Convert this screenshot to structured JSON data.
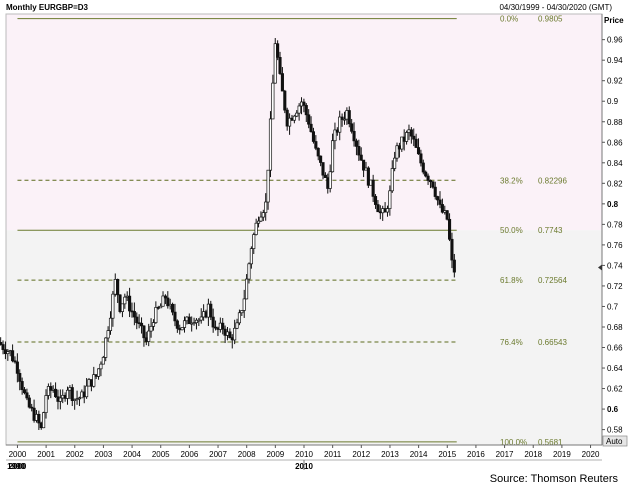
{
  "header": {
    "title": "Monthly EURGBP=D3",
    "date_range": "04/30/1999 - 04/30/2020 (GMT)"
  },
  "source": "Source: Thomson Reuters",
  "colors": {
    "upper_band": "#fbf2f8",
    "lower_band": "#f3f3f3",
    "fib_solid": "#6b7a2e",
    "fib_dashed": "#5d6b1e",
    "fib_label": "#6b7a2e",
    "candles": "#111111"
  },
  "chart_data": {
    "type": "candlestick",
    "title": "Monthly EURGBP=D3",
    "price_axis_label": "Price",
    "auto_label": "Auto",
    "ylim": [
      0.565,
      0.985
    ],
    "xlim": [
      1999.6,
      2020.4
    ],
    "grid": false,
    "y_ticks": [
      "0.58",
      "0.6",
      "0.62",
      "0.64",
      "0.66",
      "0.68",
      "0.7",
      "0.72",
      "0.74",
      "0.76",
      "0.78",
      "0.8",
      "0.82",
      "0.84",
      "0.86",
      "0.88",
      "0.9",
      "0.92",
      "0.94",
      "0.96"
    ],
    "bold_y_ticks": [
      "0.6",
      "0.8"
    ],
    "x_ticks": [
      "2000",
      "2001",
      "2002",
      "2003",
      "2004",
      "2005",
      "2006",
      "2007",
      "2008",
      "2009",
      "2010",
      "2011",
      "2012",
      "2013",
      "2014",
      "2015",
      "2016",
      "2017",
      "2018",
      "2019",
      "2020"
    ],
    "x_secondary_ticks": [
      "1990",
      "2000",
      "2010"
    ],
    "band_split_value": 0.7743,
    "last_value": 0.738,
    "fib_levels": [
      {
        "label": "0.0%",
        "value": 0.9805,
        "value_text": "0.9805",
        "style": "solid"
      },
      {
        "label": "38.2%",
        "value": 0.82296,
        "value_text": "0.82296",
        "style": "dashed"
      },
      {
        "label": "50.0%",
        "value": 0.7743,
        "value_text": "0.7743",
        "style": "solid"
      },
      {
        "label": "61.8%",
        "value": 0.72564,
        "value_text": "0.72564",
        "style": "dashed"
      },
      {
        "label": "76.4%",
        "value": 0.66543,
        "value_text": "0.66543",
        "style": "dashed"
      },
      {
        "label": "100.0%",
        "value": 0.5681,
        "value_text": "0.5681",
        "style": "solid"
      }
    ],
    "path_points": [
      [
        1999.33,
        0.665
      ],
      [
        1999.75,
        0.655
      ],
      [
        2000.0,
        0.64
      ],
      [
        2000.33,
        0.605
      ],
      [
        2000.67,
        0.59
      ],
      [
        2000.83,
        0.58
      ],
      [
        2001.0,
        0.615
      ],
      [
        2001.25,
        0.62
      ],
      [
        2001.5,
        0.605
      ],
      [
        2001.75,
        0.622
      ],
      [
        2002.0,
        0.61
      ],
      [
        2002.25,
        0.612
      ],
      [
        2002.5,
        0.625
      ],
      [
        2002.75,
        0.632
      ],
      [
        2003.0,
        0.655
      ],
      [
        2003.25,
        0.695
      ],
      [
        2003.42,
        0.725
      ],
      [
        2003.58,
        0.7
      ],
      [
        2003.75,
        0.71
      ],
      [
        2004.0,
        0.695
      ],
      [
        2004.25,
        0.68
      ],
      [
        2004.5,
        0.665
      ],
      [
        2004.75,
        0.69
      ],
      [
        2005.0,
        0.7
      ],
      [
        2005.17,
        0.71
      ],
      [
        2005.42,
        0.69
      ],
      [
        2005.67,
        0.68
      ],
      [
        2005.92,
        0.685
      ],
      [
        2006.17,
        0.69
      ],
      [
        2006.42,
        0.685
      ],
      [
        2006.67,
        0.7
      ],
      [
        2006.92,
        0.675
      ],
      [
        2007.17,
        0.68
      ],
      [
        2007.42,
        0.668
      ],
      [
        2007.67,
        0.68
      ],
      [
        2007.92,
        0.71
      ],
      [
        2008.17,
        0.76
      ],
      [
        2008.42,
        0.79
      ],
      [
        2008.67,
        0.8
      ],
      [
        2008.92,
        0.92
      ],
      [
        2009.0,
        0.96
      ],
      [
        2009.17,
        0.92
      ],
      [
        2009.42,
        0.88
      ],
      [
        2009.67,
        0.89
      ],
      [
        2009.92,
        0.9
      ],
      [
        2010.17,
        0.88
      ],
      [
        2010.42,
        0.85
      ],
      [
        2010.67,
        0.83
      ],
      [
        2010.83,
        0.815
      ],
      [
        2011.0,
        0.86
      ],
      [
        2011.25,
        0.88
      ],
      [
        2011.5,
        0.89
      ],
      [
        2011.67,
        0.875
      ],
      [
        2011.92,
        0.85
      ],
      [
        2012.17,
        0.83
      ],
      [
        2012.42,
        0.81
      ],
      [
        2012.67,
        0.79
      ],
      [
        2012.83,
        0.79
      ],
      [
        2013.0,
        0.81
      ],
      [
        2013.17,
        0.85
      ],
      [
        2013.42,
        0.86
      ],
      [
        2013.67,
        0.87
      ],
      [
        2013.83,
        0.86
      ],
      [
        2014.0,
        0.845
      ],
      [
        2014.25,
        0.83
      ],
      [
        2014.5,
        0.82
      ],
      [
        2014.75,
        0.795
      ],
      [
        2015.0,
        0.785
      ],
      [
        2015.17,
        0.74
      ],
      [
        2015.25,
        0.735
      ]
    ]
  }
}
